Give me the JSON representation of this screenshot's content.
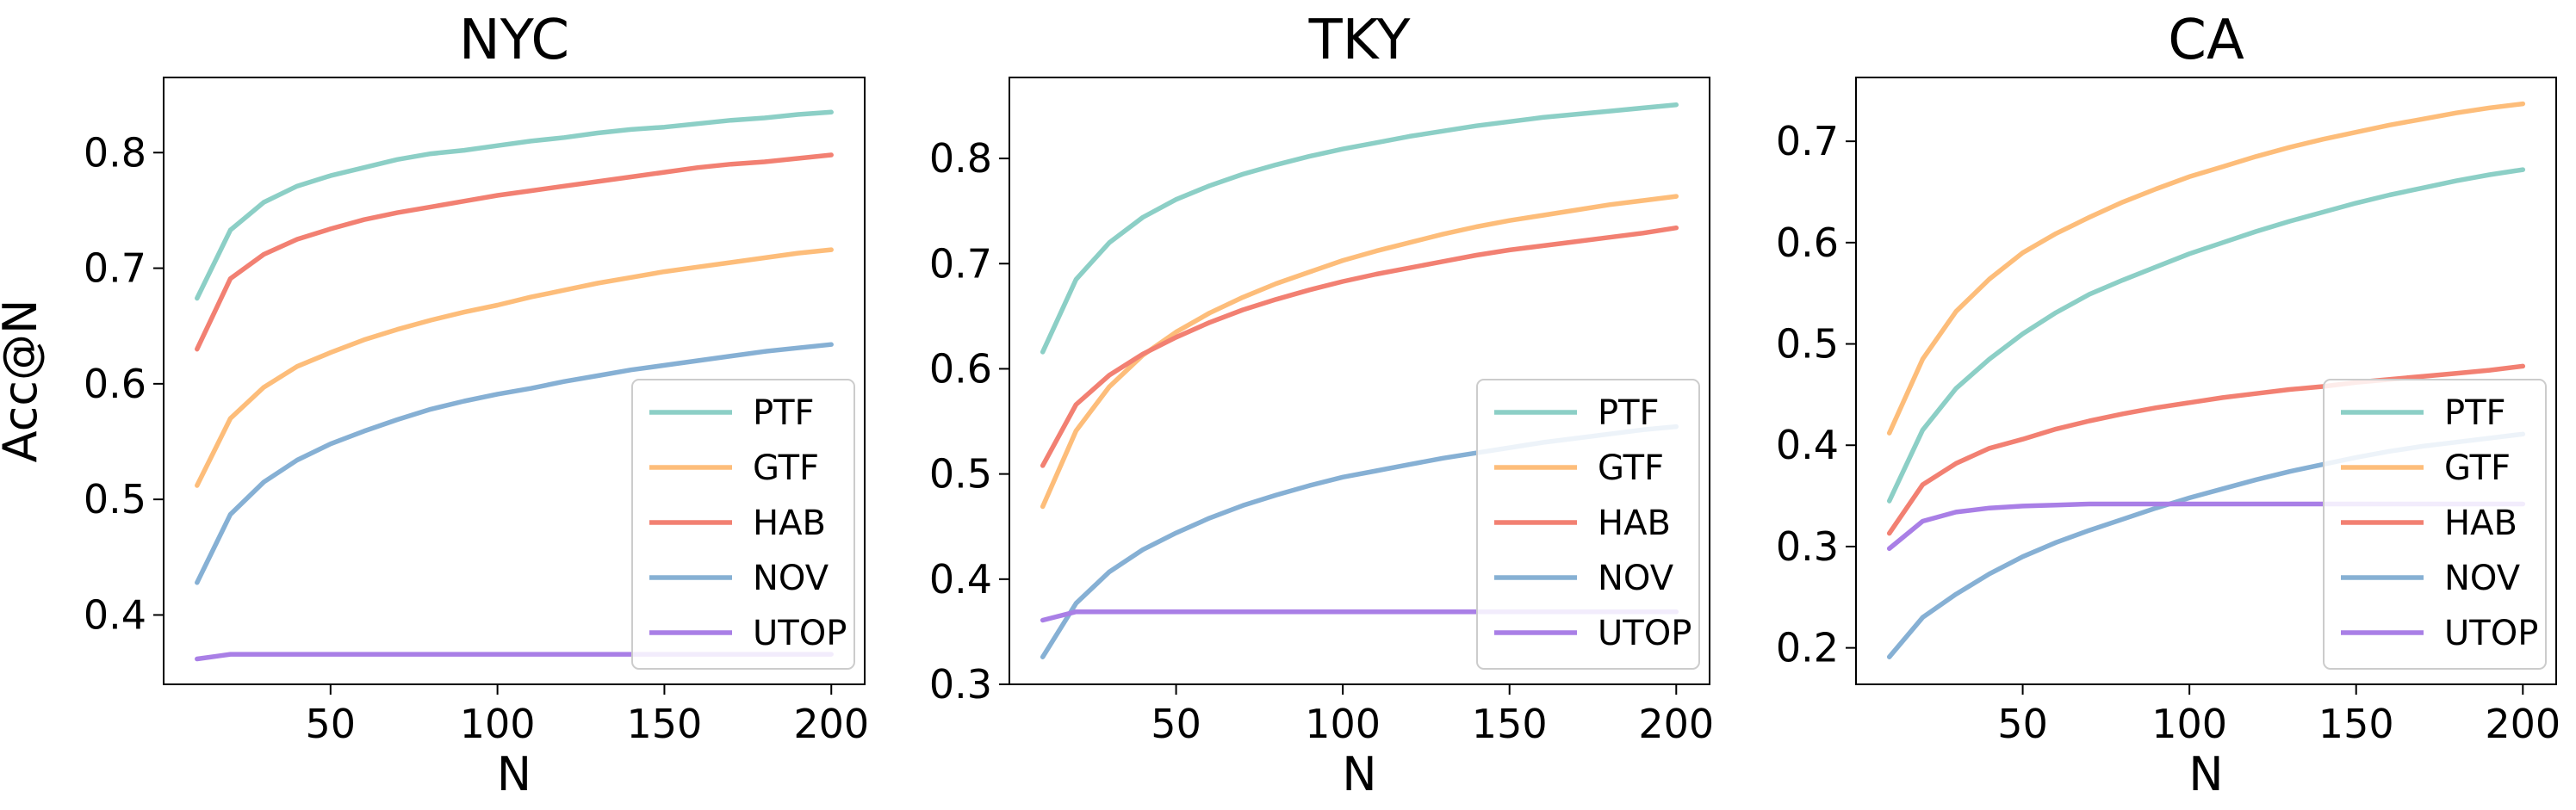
{
  "chart_data": [
    {
      "type": "line",
      "title": "NYC",
      "xlabel": "N",
      "ylabel": "Acc@N",
      "xlim": [
        0,
        210
      ],
      "ylim": [
        0.34,
        0.865
      ],
      "xticks": [
        50,
        100,
        150,
        200
      ],
      "yticks": [
        0.4,
        0.5,
        0.6,
        0.7,
        0.8
      ],
      "x": [
        10,
        20,
        30,
        40,
        50,
        60,
        70,
        80,
        90,
        100,
        110,
        120,
        130,
        140,
        150,
        160,
        170,
        180,
        190,
        200
      ],
      "legend_position": "lower-right",
      "series": [
        {
          "name": "PTF",
          "color": "#8ccfc6",
          "values": [
            0.674,
            0.733,
            0.757,
            0.771,
            0.78,
            0.787,
            0.794,
            0.799,
            0.802,
            0.806,
            0.81,
            0.813,
            0.817,
            0.82,
            0.822,
            0.825,
            0.828,
            0.83,
            0.833,
            0.835
          ]
        },
        {
          "name": "GTF",
          "color": "#fdbd7a",
          "values": [
            0.512,
            0.57,
            0.597,
            0.615,
            0.627,
            0.638,
            0.647,
            0.655,
            0.662,
            0.668,
            0.675,
            0.681,
            0.687,
            0.692,
            0.697,
            0.701,
            0.705,
            0.709,
            0.713,
            0.716
          ]
        },
        {
          "name": "HAB",
          "color": "#f28072",
          "values": [
            0.63,
            0.691,
            0.712,
            0.725,
            0.734,
            0.742,
            0.748,
            0.753,
            0.758,
            0.763,
            0.767,
            0.771,
            0.775,
            0.779,
            0.783,
            0.787,
            0.79,
            0.792,
            0.795,
            0.798
          ]
        },
        {
          "name": "NOV",
          "color": "#86b0d4",
          "values": [
            0.428,
            0.487,
            0.515,
            0.534,
            0.548,
            0.559,
            0.569,
            0.578,
            0.585,
            0.591,
            0.596,
            0.602,
            0.607,
            0.612,
            0.616,
            0.62,
            0.624,
            0.628,
            0.631,
            0.634
          ]
        },
        {
          "name": "UTOP",
          "color": "#a97fe6",
          "values": [
            0.362,
            0.366,
            0.366,
            0.366,
            0.366,
            0.366,
            0.366,
            0.366,
            0.366,
            0.366,
            0.366,
            0.366,
            0.366,
            0.366,
            0.366,
            0.366,
            0.366,
            0.366,
            0.366,
            0.366
          ]
        }
      ]
    },
    {
      "type": "line",
      "title": "TKY",
      "xlabel": "N",
      "ylabel": "",
      "xlim": [
        0,
        210
      ],
      "ylim": [
        0.3,
        0.877
      ],
      "xticks": [
        50,
        100,
        150,
        200
      ],
      "yticks": [
        0.3,
        0.4,
        0.5,
        0.6,
        0.7,
        0.8
      ],
      "x": [
        10,
        20,
        30,
        40,
        50,
        60,
        70,
        80,
        90,
        100,
        110,
        120,
        130,
        140,
        150,
        160,
        170,
        180,
        190,
        200
      ],
      "legend_position": "lower-right",
      "series": [
        {
          "name": "PTF",
          "color": "#8ccfc6",
          "values": [
            0.616,
            0.685,
            0.72,
            0.744,
            0.761,
            0.774,
            0.785,
            0.794,
            0.802,
            0.809,
            0.815,
            0.821,
            0.826,
            0.831,
            0.835,
            0.839,
            0.842,
            0.845,
            0.848,
            0.851
          ]
        },
        {
          "name": "GTF",
          "color": "#fdbd7a",
          "values": [
            0.469,
            0.541,
            0.583,
            0.613,
            0.635,
            0.653,
            0.668,
            0.681,
            0.692,
            0.703,
            0.712,
            0.72,
            0.728,
            0.735,
            0.741,
            0.746,
            0.751,
            0.756,
            0.76,
            0.764
          ]
        },
        {
          "name": "HAB",
          "color": "#f28072",
          "values": [
            0.508,
            0.566,
            0.594,
            0.614,
            0.63,
            0.644,
            0.656,
            0.666,
            0.675,
            0.683,
            0.69,
            0.696,
            0.702,
            0.708,
            0.713,
            0.717,
            0.721,
            0.725,
            0.729,
            0.734
          ]
        },
        {
          "name": "NOV",
          "color": "#86b0d4",
          "values": [
            0.326,
            0.377,
            0.407,
            0.428,
            0.444,
            0.458,
            0.47,
            0.48,
            0.489,
            0.497,
            0.503,
            0.509,
            0.515,
            0.52,
            0.525,
            0.53,
            0.534,
            0.538,
            0.542,
            0.545
          ]
        },
        {
          "name": "UTOP",
          "color": "#a97fe6",
          "values": [
            0.361,
            0.369,
            0.369,
            0.369,
            0.369,
            0.369,
            0.369,
            0.369,
            0.369,
            0.369,
            0.369,
            0.369,
            0.369,
            0.369,
            0.369,
            0.369,
            0.369,
            0.369,
            0.369,
            0.369
          ]
        }
      ]
    },
    {
      "type": "line",
      "title": "CA",
      "xlabel": "N",
      "ylabel": "",
      "xlim": [
        0,
        210
      ],
      "ylim": [
        0.164,
        0.763
      ],
      "xticks": [
        50,
        100,
        150,
        200
      ],
      "yticks": [
        0.2,
        0.3,
        0.4,
        0.5,
        0.6,
        0.7
      ],
      "x": [
        10,
        20,
        30,
        40,
        50,
        60,
        70,
        80,
        90,
        100,
        110,
        120,
        130,
        140,
        150,
        160,
        170,
        180,
        190,
        200
      ],
      "legend_position": "lower-right",
      "series": [
        {
          "name": "PTF",
          "color": "#8ccfc6",
          "values": [
            0.345,
            0.415,
            0.456,
            0.485,
            0.51,
            0.531,
            0.549,
            0.563,
            0.576,
            0.589,
            0.6,
            0.611,
            0.621,
            0.63,
            0.639,
            0.647,
            0.654,
            0.661,
            0.667,
            0.672
          ]
        },
        {
          "name": "GTF",
          "color": "#fdbd7a",
          "values": [
            0.412,
            0.485,
            0.532,
            0.564,
            0.59,
            0.609,
            0.625,
            0.64,
            0.653,
            0.665,
            0.675,
            0.685,
            0.694,
            0.702,
            0.709,
            0.716,
            0.722,
            0.728,
            0.733,
            0.737
          ]
        },
        {
          "name": "HAB",
          "color": "#f28072",
          "values": [
            0.313,
            0.361,
            0.382,
            0.397,
            0.406,
            0.416,
            0.424,
            0.431,
            0.437,
            0.442,
            0.447,
            0.451,
            0.455,
            0.458,
            0.462,
            0.465,
            0.468,
            0.471,
            0.474,
            0.478
          ]
        },
        {
          "name": "NOV",
          "color": "#86b0d4",
          "values": [
            0.191,
            0.23,
            0.253,
            0.273,
            0.29,
            0.304,
            0.316,
            0.327,
            0.338,
            0.348,
            0.357,
            0.366,
            0.374,
            0.381,
            0.388,
            0.394,
            0.399,
            0.403,
            0.407,
            0.411
          ]
        },
        {
          "name": "UTOP",
          "color": "#a97fe6",
          "values": [
            0.298,
            0.325,
            0.334,
            0.338,
            0.34,
            0.341,
            0.342,
            0.342,
            0.342,
            0.342,
            0.342,
            0.342,
            0.342,
            0.342,
            0.342,
            0.342,
            0.342,
            0.342,
            0.342,
            0.342
          ]
        }
      ]
    }
  ]
}
